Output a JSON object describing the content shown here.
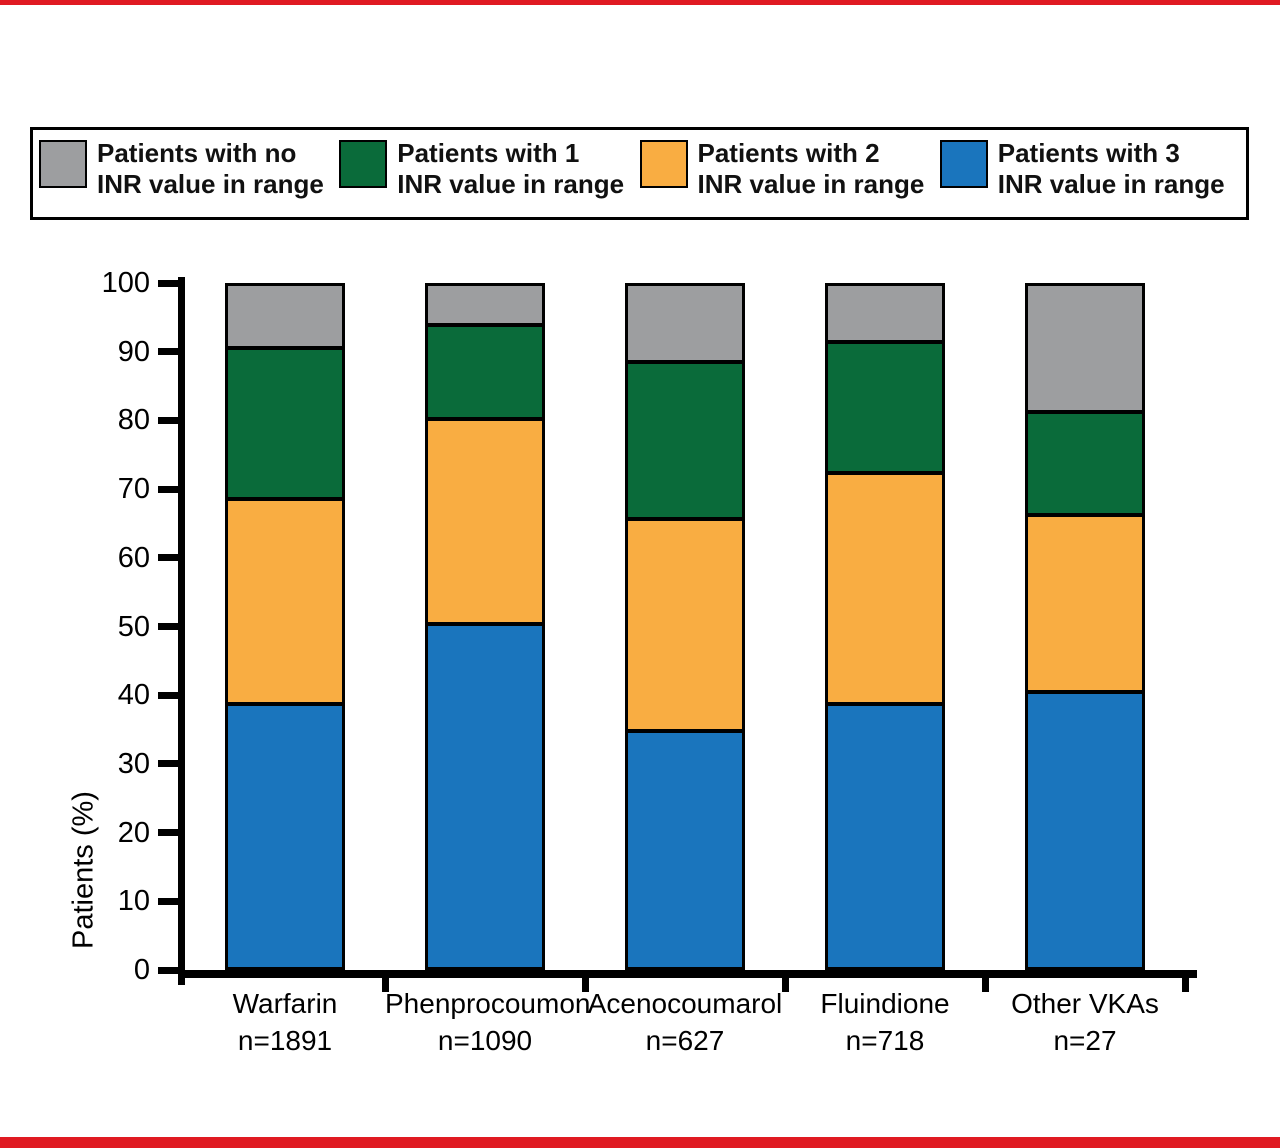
{
  "page": {
    "accent_red": "#e01a22",
    "background": "#ffffff"
  },
  "legend": {
    "entries": [
      {
        "id": "no-inr",
        "line1": "Patients with no",
        "line2": "INR value in range",
        "color": "#9d9ea0"
      },
      {
        "id": "one-inr",
        "line1": "Patients with 1",
        "line2": "INR value in range",
        "color": "#0a6b3a"
      },
      {
        "id": "two-inr",
        "line1": "Patients with 2",
        "line2": "INR value in range",
        "color": "#f9ad42"
      },
      {
        "id": "three-inr",
        "line1": "Patients with 3",
        "line2": "INR value in range",
        "color": "#1a75bd"
      }
    ]
  },
  "chart_data": {
    "type": "bar",
    "stacked": true,
    "title": "",
    "xlabel": "",
    "ylabel": "Patients (%)",
    "ylim": [
      0,
      100
    ],
    "yticks": [
      0,
      10,
      20,
      30,
      40,
      50,
      60,
      70,
      80,
      90,
      100
    ],
    "grid": false,
    "legend_position": "top",
    "categories": [
      "Warfarin",
      "Phenprocoumon",
      "Acenocoumarol",
      "Fluindione",
      "Other VKAs"
    ],
    "category_counts": [
      "n=1891",
      "n=1090",
      "n=627",
      "n=718",
      "n=27"
    ],
    "stack_order_top_to_bottom": [
      "Patients with no INR value in range",
      "Patients with 1 INR value in range",
      "Patients with 2 INR value in range",
      "Patients with 3 INR value in range"
    ],
    "series": [
      {
        "name": "Patients with no INR value in range",
        "color": "#9d9ea0",
        "values": [
          9,
          5.5,
          11,
          8,
          18.5
        ]
      },
      {
        "name": "Patients with 1 INR value in range",
        "color": "#0a6b3a",
        "values": [
          22,
          13.5,
          23,
          19,
          14.8
        ]
      },
      {
        "name": "Patients with 2 INR value in range",
        "color": "#f9ad42",
        "values": [
          30,
          30,
          31,
          34,
          25.9
        ]
      },
      {
        "name": "Patients with 3 INR value in range",
        "color": "#1a75bd",
        "values": [
          39,
          51,
          35,
          39,
          40.7
        ]
      }
    ]
  }
}
